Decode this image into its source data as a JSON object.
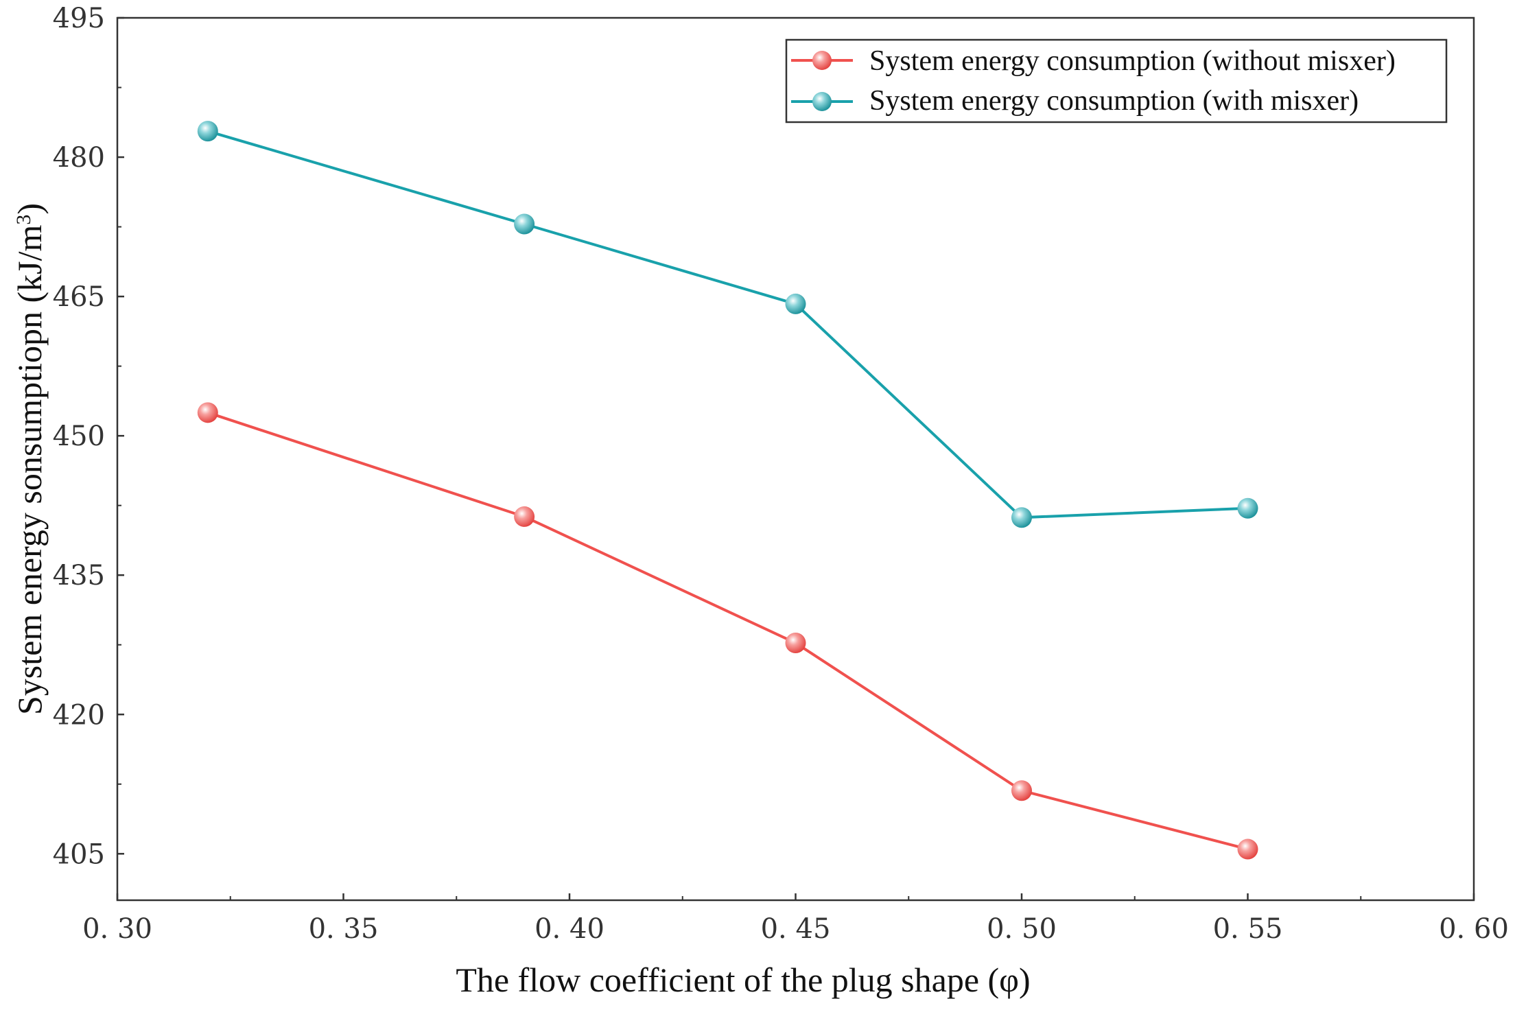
{
  "chart_data": {
    "type": "line",
    "x": [
      0.32,
      0.39,
      0.45,
      0.5,
      0.55
    ],
    "series": [
      {
        "name": "System energy consumption (without misxer)",
        "color": "#f0514e",
        "values": [
          452.5,
          441.3,
          427.7,
          411.8,
          405.5
        ]
      },
      {
        "name": "System energy consumption (with misxer)",
        "color": "#19a1ab",
        "values": [
          482.8,
          472.8,
          464.2,
          441.2,
          442.2
        ]
      }
    ],
    "xlabel": "The flow coefficient of the plug shape (φ)",
    "ylabel": "System energy sonsumptiopn (kJ/m",
    "ylabel_sup": "3",
    "ylabel_end": ")",
    "xlim": [
      0.3,
      0.6
    ],
    "ylim": [
      400,
      495
    ],
    "x_ticks": [
      0.3,
      0.35,
      0.4,
      0.45,
      0.5,
      0.55,
      0.6
    ],
    "x_tick_labels": [
      "0. 30",
      "0. 35",
      "0. 40",
      "0. 45",
      "0. 50",
      "0. 55",
      "0. 60"
    ],
    "y_ticks": [
      405,
      420,
      435,
      450,
      465,
      480,
      495
    ],
    "y_tick_labels": [
      "405",
      "420",
      "435",
      "450",
      "465",
      "480",
      "495"
    ],
    "grid": false,
    "legend_position": "top-right"
  }
}
